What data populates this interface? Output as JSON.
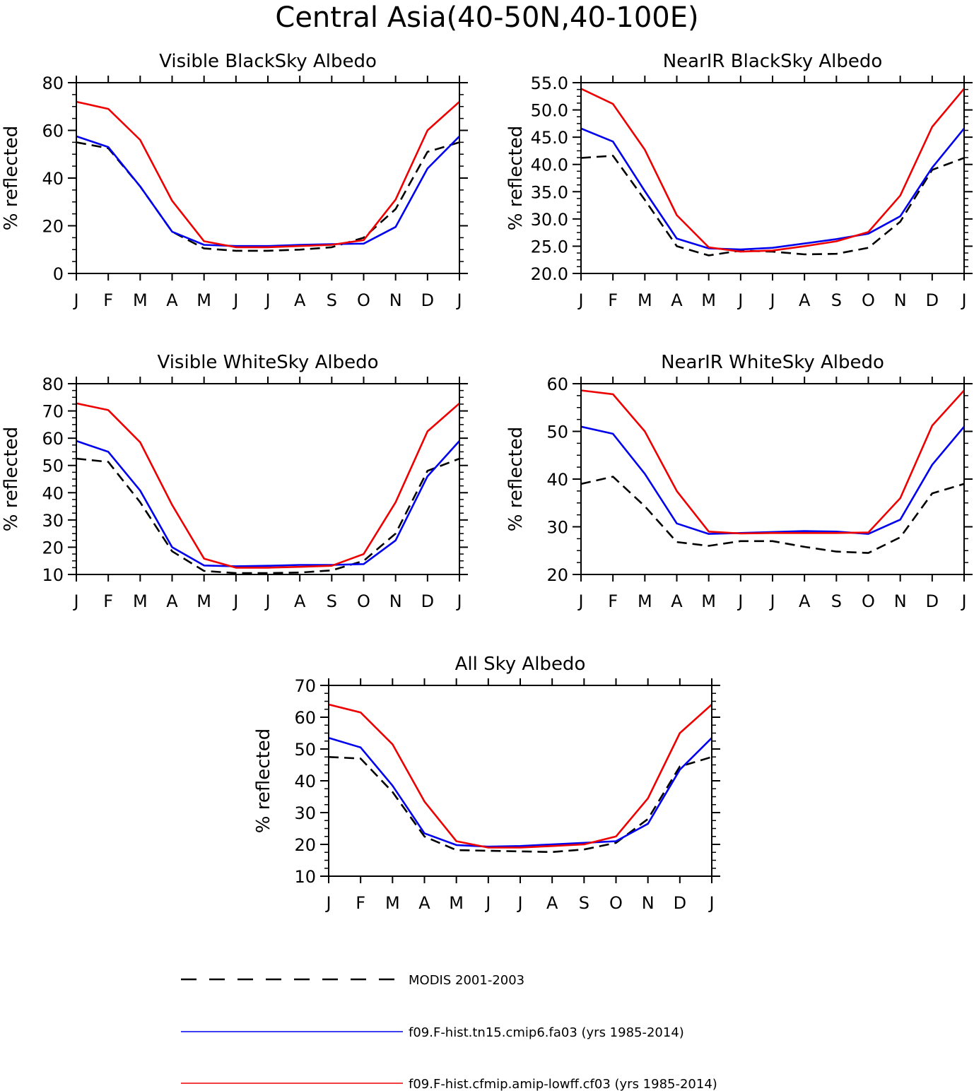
{
  "title": "Central Asia(40-50N,40-100E)",
  "legend": [
    {
      "name": "MODIS 2001-2003",
      "color": "#000000",
      "dash": true
    },
    {
      "name": "f09.F-hist.tn15.cmip6.fa03 (yrs 1985-2014)",
      "color": "#0000ee",
      "dash": false
    },
    {
      "name": "f09.F-hist.cfmip.amip-lowff.cf03 (yrs 1985-2014)",
      "color": "#ee0000",
      "dash": false
    }
  ],
  "chart_data": [
    {
      "type": "line",
      "title": "Visible BlackSky Albedo",
      "ylabel": "% reflected",
      "x": [
        "J",
        "F",
        "M",
        "A",
        "M",
        "J",
        "J",
        "A",
        "S",
        "O",
        "N",
        "D",
        "J"
      ],
      "ylim": [
        0,
        80
      ],
      "yticks": [
        "0",
        "20",
        "40",
        "60",
        "80"
      ],
      "series": [
        {
          "name": "MODIS 2001-2003",
          "color": "#000000",
          "dash": true,
          "values": [
            55,
            52.5,
            36.5,
            17.5,
            10.5,
            9.5,
            9.5,
            10,
            11,
            15,
            27,
            51,
            55
          ]
        },
        {
          "name": "f09.F-hist.tn15.cmip6.fa03 (yrs 1985-2014)",
          "color": "#0000ee",
          "dash": false,
          "values": [
            57.5,
            53,
            36.5,
            17.5,
            12,
            11.5,
            11.5,
            12,
            12.3,
            12.5,
            19.5,
            44,
            57.5
          ]
        },
        {
          "name": "f09.F-hist.cfmip.amip-lowff.cf03 (yrs 1985-2014)",
          "color": "#ee0000",
          "dash": false,
          "values": [
            72,
            69,
            56,
            30.5,
            13.5,
            11,
            11,
            11.5,
            12,
            14,
            31,
            60,
            72
          ]
        }
      ]
    },
    {
      "type": "line",
      "title": "NearIR BlackSky Albedo",
      "ylabel": "% reflected",
      "x": [
        "J",
        "F",
        "M",
        "A",
        "M",
        "J",
        "J",
        "A",
        "S",
        "O",
        "N",
        "D",
        "J"
      ],
      "ylim": [
        20,
        55
      ],
      "yticks": [
        "20.0",
        "25.0",
        "30.0",
        "35.0",
        "40.0",
        "45.0",
        "50.0",
        "55.0"
      ],
      "series": [
        {
          "name": "MODIS 2001-2003",
          "color": "#000000",
          "dash": true,
          "values": [
            41.2,
            41.6,
            33.5,
            25,
            23.3,
            24.2,
            24,
            23.5,
            23.6,
            24.7,
            29.5,
            39,
            41.2
          ]
        },
        {
          "name": "f09.F-hist.tn15.cmip6.fa03 (yrs 1985-2014)",
          "color": "#0000ee",
          "dash": false,
          "values": [
            46.6,
            44.2,
            35.1,
            26.4,
            24.6,
            24.4,
            24.7,
            25.5,
            26.3,
            27.3,
            30.5,
            39.4,
            46.6
          ]
        },
        {
          "name": "f09.F-hist.cfmip.amip-lowff.cf03 (yrs 1985-2014)",
          "color": "#ee0000",
          "dash": false,
          "values": [
            53.9,
            51.1,
            42.7,
            30.7,
            24.8,
            24,
            24.2,
            25,
            25.9,
            27.6,
            34.3,
            46.9,
            53.9
          ]
        }
      ]
    },
    {
      "type": "line",
      "title": "Visible WhiteSky Albedo",
      "ylabel": "% reflected",
      "x": [
        "J",
        "F",
        "M",
        "A",
        "M",
        "J",
        "J",
        "A",
        "S",
        "O",
        "N",
        "D",
        "J"
      ],
      "ylim": [
        10,
        80
      ],
      "yticks": [
        "10",
        "20",
        "30",
        "40",
        "50",
        "60",
        "70",
        "80"
      ],
      "series": [
        {
          "name": "MODIS 2001-2003",
          "color": "#000000",
          "dash": true,
          "values": [
            52.5,
            51.3,
            36.5,
            18.5,
            11.3,
            10.5,
            10.5,
            10.7,
            11.5,
            15,
            25,
            48,
            52.5
          ]
        },
        {
          "name": "f09.F-hist.tn15.cmip6.fa03 (yrs 1985-2014)",
          "color": "#0000ee",
          "dash": false,
          "values": [
            59,
            55,
            40.8,
            20,
            13.3,
            13,
            13.2,
            13.5,
            13.5,
            13.8,
            22.5,
            46,
            59
          ]
        },
        {
          "name": "f09.F-hist.cfmip.amip-lowff.cf03 (yrs 1985-2014)",
          "color": "#ee0000",
          "dash": false,
          "values": [
            72.8,
            70.3,
            58.5,
            35.5,
            15.8,
            12.5,
            12.5,
            12.8,
            13.2,
            17.5,
            36.5,
            62.5,
            72.8
          ]
        }
      ]
    },
    {
      "type": "line",
      "title": "NearIR WhiteSky Albedo",
      "ylabel": "% reflected",
      "x": [
        "J",
        "F",
        "M",
        "A",
        "M",
        "J",
        "J",
        "A",
        "S",
        "O",
        "N",
        "D",
        "J"
      ],
      "ylim": [
        20,
        60
      ],
      "yticks": [
        "20",
        "30",
        "40",
        "50",
        "60"
      ],
      "series": [
        {
          "name": "MODIS 2001-2003",
          "color": "#000000",
          "dash": true,
          "values": [
            39,
            40.5,
            34.3,
            26.8,
            26,
            27,
            27,
            25.8,
            24.8,
            24.5,
            27.8,
            37,
            39
          ]
        },
        {
          "name": "f09.F-hist.tn15.cmip6.fa03 (yrs 1985-2014)",
          "color": "#0000ee",
          "dash": false,
          "values": [
            51,
            49.5,
            41.1,
            30.7,
            28.5,
            28.7,
            28.9,
            29.1,
            29,
            28.5,
            31.5,
            43,
            51
          ]
        },
        {
          "name": "f09.F-hist.cfmip.amip-lowff.cf03 (yrs 1985-2014)",
          "color": "#ee0000",
          "dash": false,
          "values": [
            58.6,
            57.8,
            50,
            37.5,
            29,
            28.6,
            28.7,
            28.7,
            28.7,
            28.8,
            36,
            51.2,
            58.6
          ]
        }
      ]
    },
    {
      "type": "line",
      "title": "All Sky Albedo",
      "ylabel": "% reflected",
      "x": [
        "J",
        "F",
        "M",
        "A",
        "M",
        "J",
        "J",
        "A",
        "S",
        "O",
        "N",
        "D",
        "J"
      ],
      "ylim": [
        10,
        70
      ],
      "yticks": [
        "10",
        "20",
        "30",
        "40",
        "50",
        "60",
        "70"
      ],
      "series": [
        {
          "name": "MODIS 2001-2003",
          "color": "#000000",
          "dash": true,
          "values": [
            47.5,
            47,
            36.5,
            22.5,
            18.2,
            18,
            17.8,
            17.6,
            18.4,
            20.5,
            28,
            44.5,
            47.5
          ]
        },
        {
          "name": "f09.F-hist.tn15.cmip6.fa03 (yrs 1985-2014)",
          "color": "#0000ee",
          "dash": false,
          "values": [
            53.5,
            50.5,
            38.5,
            23.5,
            19.8,
            19.3,
            19.5,
            20,
            20.5,
            21,
            26.5,
            43.5,
            53.5
          ]
        },
        {
          "name": "f09.F-hist.cfmip.amip-lowff.cf03 (yrs 1985-2014)",
          "color": "#ee0000",
          "dash": false,
          "values": [
            64,
            61.5,
            51.5,
            33.5,
            21,
            19,
            19,
            19.5,
            20,
            22.5,
            34.5,
            55,
            64
          ]
        }
      ]
    }
  ]
}
